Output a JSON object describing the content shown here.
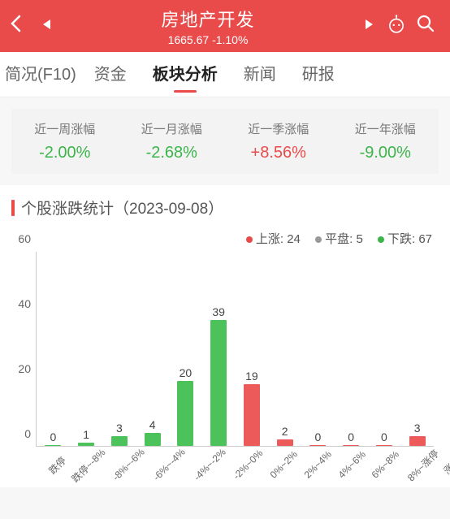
{
  "header": {
    "title": "房地产开发",
    "index_value": "1665.67",
    "change_pct": "-1.10%"
  },
  "tabs": {
    "items": [
      {
        "label": "简况(F10)",
        "active": false
      },
      {
        "label": "资金",
        "active": false
      },
      {
        "label": "板块分析",
        "active": true
      },
      {
        "label": "新闻",
        "active": false
      },
      {
        "label": "研报",
        "active": false
      }
    ]
  },
  "periods": [
    {
      "label": "近一周涨幅",
      "value": "-2.00%",
      "dir": "down"
    },
    {
      "label": "近一月涨幅",
      "value": "-2.68%",
      "dir": "down"
    },
    {
      "label": "近一季涨幅",
      "value": "+8.56%",
      "dir": "up"
    },
    {
      "label": "近一年涨幅",
      "value": "-9.00%",
      "dir": "down"
    }
  ],
  "chart": {
    "section_title": "个股涨跌统计（2023-09-08）",
    "legend": {
      "up_label": "上涨",
      "up_count": "24",
      "flat_label": "平盘",
      "flat_count": "5",
      "down_label": "下跌",
      "down_count": "67"
    },
    "ylim_max": 60,
    "y_ticks": [
      0,
      20,
      40,
      60
    ],
    "bars": [
      {
        "label": "跌停",
        "value": 0,
        "color": "green"
      },
      {
        "label": "跌停~-8%",
        "value": 1,
        "color": "green"
      },
      {
        "label": "-8%~-6%",
        "value": 3,
        "color": "green"
      },
      {
        "label": "-6%~-4%",
        "value": 4,
        "color": "green"
      },
      {
        "label": "-4%~-2%",
        "value": 20,
        "color": "green"
      },
      {
        "label": "-2%~0%",
        "value": 39,
        "color": "green"
      },
      {
        "label": "0%~2%",
        "value": 19,
        "color": "red"
      },
      {
        "label": "2%~4%",
        "value": 2,
        "color": "red"
      },
      {
        "label": "4%~6%",
        "value": 0,
        "color": "red"
      },
      {
        "label": "6%~8%",
        "value": 0,
        "color": "red"
      },
      {
        "label": "8%~涨停",
        "value": 0,
        "color": "red"
      },
      {
        "label": "涨停",
        "value": 3,
        "color": "red"
      }
    ],
    "colors": {
      "green": "#4cc25a",
      "red": "#ed5a5a"
    }
  }
}
